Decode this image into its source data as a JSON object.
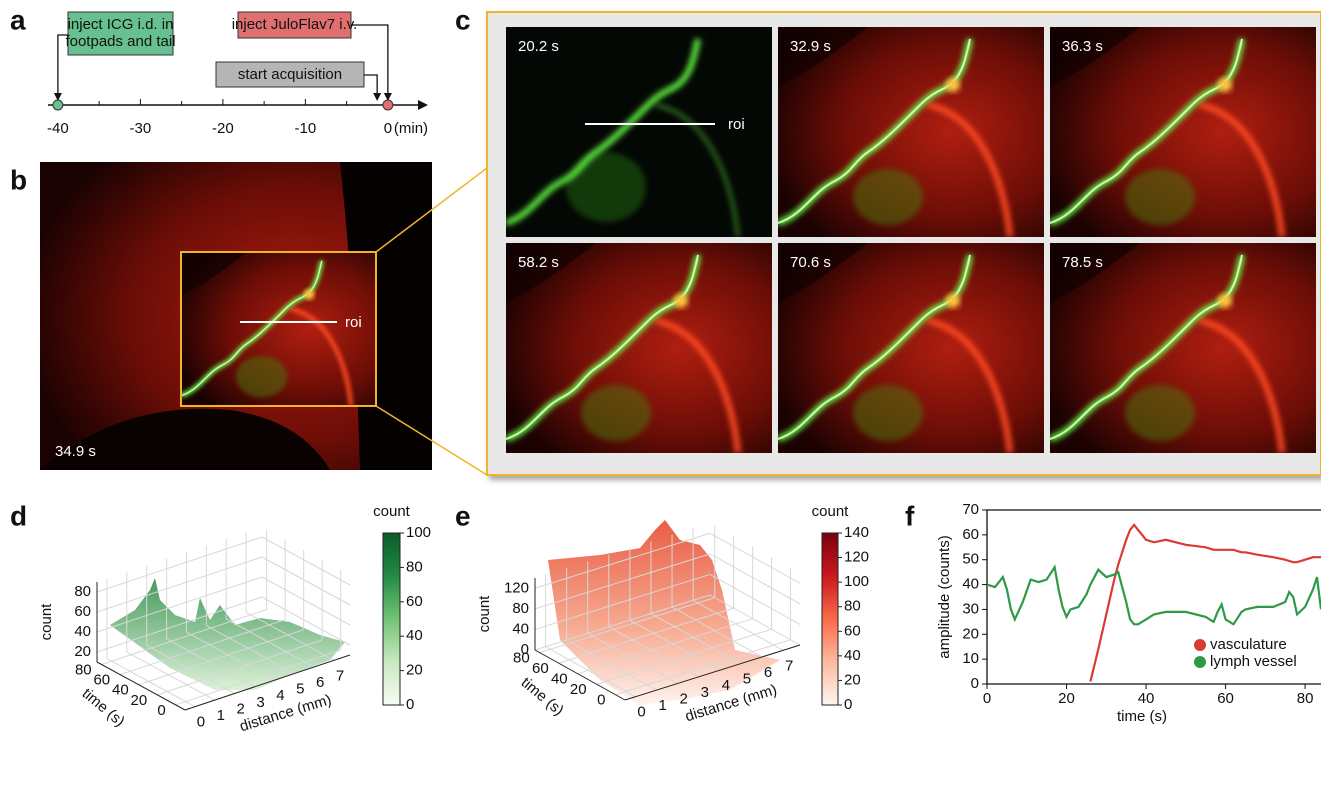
{
  "panel_labels": [
    "a",
    "b",
    "c",
    "d",
    "e",
    "f"
  ],
  "timeline": {
    "events": [
      {
        "lines": [
          "inject ICG i.d. in",
          "footpads and tail"
        ],
        "color": "#66c08f",
        "time": -40
      },
      {
        "lines": [
          "inject JuloFlav7 i.v."
        ],
        "color": "#e07070",
        "time": 0
      },
      {
        "lines": [
          "start acquisition"
        ],
        "color": "#b5b5b5",
        "time": -1.3
      }
    ],
    "xlim": [
      -41.2,
      4.5
    ],
    "xticks": [
      -40,
      -30,
      -20,
      -10,
      0
    ],
    "minor_xticks": [
      -35,
      -25,
      -15,
      -5
    ],
    "unit": "(min)"
  },
  "image_b": {
    "time_label": "34.9 s",
    "roi_label": "roi"
  },
  "images_c": {
    "time_labels": [
      "20.2 s",
      "32.9 s",
      "36.3 s",
      "58.2 s",
      "70.6 s",
      "78.5 s"
    ],
    "roi_label": "roi"
  },
  "chart_data": [
    {
      "type": "surface3d",
      "zlabel": "count",
      "ylabel": "time (s)",
      "xlabel": "distance (mm)",
      "xlim": [
        -0.5,
        7.8
      ],
      "xticks": [
        0,
        1,
        2,
        3,
        4,
        5,
        6,
        7
      ],
      "ylim": [
        -10,
        85
      ],
      "yticks": [
        0,
        20,
        40,
        60,
        80
      ],
      "zlim": [
        10,
        90
      ],
      "zticks": [
        20,
        40,
        60,
        80
      ],
      "colorbar": {
        "label": "count",
        "lim": [
          0,
          100
        ],
        "ticks": [
          0,
          20,
          40,
          60,
          80,
          100
        ],
        "colors": [
          "#f7fcf5",
          "#c7e9c0",
          "#74c476",
          "#238b45",
          "#0b5a2a"
        ]
      }
    },
    {
      "type": "surface3d",
      "zlabel": "count",
      "ylabel": "time (s)",
      "xlabel": "distance (mm)",
      "xlim": [
        -0.5,
        7.8
      ],
      "xticks": [
        0,
        1,
        2,
        3,
        4,
        5,
        6,
        7
      ],
      "ylim": [
        -10,
        85
      ],
      "yticks": [
        0,
        20,
        40,
        60,
        80
      ],
      "zlim": [
        0,
        140
      ],
      "zticks": [
        0,
        40,
        80,
        120
      ],
      "colorbar": {
        "label": "count",
        "lim": [
          0,
          140
        ],
        "ticks": [
          0,
          20,
          40,
          60,
          80,
          100,
          120,
          140
        ],
        "colors": [
          "#fff5f0",
          "#fcbba1",
          "#fb6a4a",
          "#cb181d",
          "#7a0010"
        ]
      }
    },
    {
      "type": "line",
      "xlabel": "time (s)",
      "ylabel": "amplitude (counts)",
      "xlim": [
        0,
        84
      ],
      "xticks": [
        0,
        20,
        40,
        60,
        80
      ],
      "ylim": [
        0,
        70
      ],
      "yticks": [
        0,
        10,
        20,
        30,
        40,
        50,
        60,
        70
      ],
      "legend": "lower right",
      "x": [
        0,
        2,
        4,
        5,
        6,
        7,
        9,
        11,
        13,
        15,
        17,
        18,
        19,
        20,
        21,
        23,
        25,
        26,
        28,
        30,
        32,
        33,
        35,
        36,
        37,
        38,
        40,
        42,
        45,
        50,
        55,
        57,
        58,
        59,
        60,
        62,
        64,
        65,
        68,
        72,
        75,
        76,
        77,
        78,
        80,
        82,
        83,
        84
      ],
      "series": [
        {
          "name": "vasculature",
          "color": "#d93a32",
          "values": [
            null,
            null,
            null,
            null,
            null,
            null,
            null,
            null,
            null,
            null,
            null,
            null,
            null,
            null,
            null,
            null,
            null,
            1,
            14,
            28,
            42,
            48,
            58,
            62,
            64,
            62,
            58,
            57,
            58,
            56,
            55,
            54,
            54,
            54,
            54,
            54,
            53,
            53,
            52,
            51,
            50,
            49.5,
            49,
            49,
            50,
            51,
            51,
            51
          ]
        },
        {
          "name": "lymph vessel",
          "color": "#2e9a46",
          "values": [
            40,
            39,
            43,
            38,
            30,
            26,
            33,
            42,
            41,
            42,
            47,
            38,
            31,
            27,
            30,
            31,
            36,
            40,
            46,
            43,
            44,
            45,
            33,
            26,
            24,
            24,
            26,
            28,
            29,
            29,
            27,
            25,
            29,
            32,
            26,
            24,
            29,
            30,
            31,
            31,
            33,
            37,
            35,
            28,
            31,
            38,
            43,
            30
          ]
        }
      ]
    }
  ]
}
